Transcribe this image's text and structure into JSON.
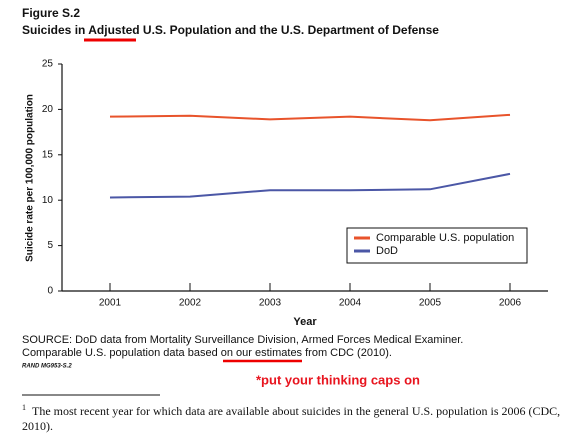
{
  "figure_label": "Figure S.2",
  "chart_data": {
    "type": "line",
    "title": "Suicides in Adjusted U.S. Population and the U.S. Department of Defense",
    "x_label": "Year",
    "y_label": "Suicide rate per 100,000 population",
    "categories": [
      "2001",
      "2002",
      "2003",
      "2004",
      "2005",
      "2006"
    ],
    "series": [
      {
        "name": "Comparable U.S. population",
        "color": "#e8532b",
        "values": [
          19.2,
          19.3,
          18.9,
          19.2,
          18.8,
          19.4
        ]
      },
      {
        "name": "DoD",
        "color": "#4b57a6",
        "values": [
          10.3,
          10.4,
          11.1,
          11.1,
          11.2,
          12.9
        ]
      }
    ],
    "ylim": [
      0,
      25
    ],
    "yticks": [
      0,
      5,
      10,
      15,
      20,
      25
    ],
    "grid": false,
    "legend": "right"
  },
  "source": [
    "SOURCE: DoD data from Mortality Surveillance Division, Armed Forces Medical Examiner.",
    "Comparable U.S. population data based on our estimates from CDC (2010)."
  ],
  "report_id": "RAND MG953-S.2",
  "annotation": "*put your thinking caps on",
  "footnote": {
    "marker": "1",
    "text": "The most recent year for which data are available about suicides in the general U.S. population is 2006 (CDC, 2010)."
  }
}
